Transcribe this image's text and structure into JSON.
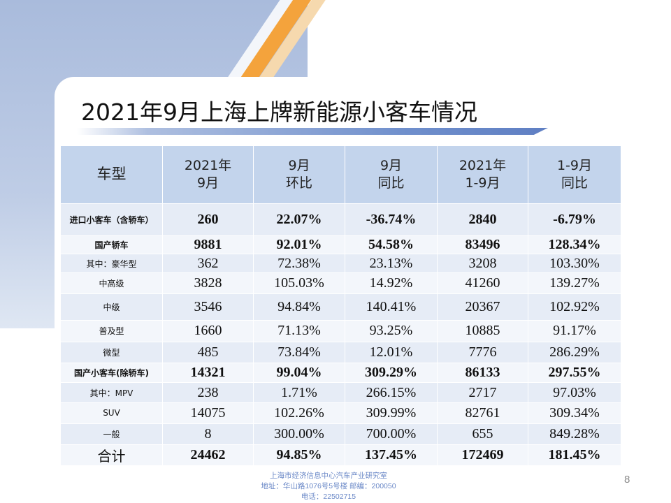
{
  "slide": {
    "title": "2021年9月上海上牌新能源小客车情况",
    "page_number": "8"
  },
  "table": {
    "headers": [
      {
        "line1": "车型",
        "line2": ""
      },
      {
        "line1": "2021年",
        "line2": "9月"
      },
      {
        "line1": "9月",
        "line2": "环比"
      },
      {
        "line1": "9月",
        "line2": "同比"
      },
      {
        "line1": "2021年",
        "line2": "1-9月"
      },
      {
        "line1": "1-9月",
        "line2": "同比"
      }
    ],
    "rows": [
      [
        "进口小客车（含轿车）",
        "260",
        "22.07%",
        "-36.74%",
        "2840",
        "-6.79%"
      ],
      [
        "国产轿车",
        "9881",
        "92.01%",
        "54.58%",
        "83496",
        "128.34%"
      ],
      [
        "其中：豪华型",
        "362",
        "72.38%",
        "23.13%",
        "3208",
        "103.30%"
      ],
      [
        "中高级",
        "3828",
        "105.03%",
        "14.92%",
        "41260",
        "139.27%"
      ],
      [
        "中级",
        "3546",
        "94.84%",
        "140.41%",
        "20367",
        "102.92%"
      ],
      [
        "普及型",
        "1660",
        "71.13%",
        "93.25%",
        "10885",
        "91.17%"
      ],
      [
        "微型",
        "485",
        "73.84%",
        "12.01%",
        "7776",
        "286.29%"
      ],
      [
        "国产小客车(除轿车)",
        "14321",
        "99.04%",
        "309.29%",
        "86133",
        "297.55%"
      ],
      [
        "其中：MPV",
        "238",
        "1.71%",
        "266.15%",
        "2717",
        "97.03%"
      ],
      [
        "SUV",
        "14075",
        "102.26%",
        "309.99%",
        "82761",
        "309.34%"
      ],
      [
        "一般",
        "8",
        "300.00%",
        "700.00%",
        "655",
        "849.28%"
      ],
      [
        "合计",
        "24462",
        "94.85%",
        "137.45%",
        "172469",
        "181.45%"
      ]
    ]
  },
  "footer": {
    "line1": "上海市经济信息中心汽车产业研究室",
    "line2": "地址：华山路1076号5号楼    邮编：200050",
    "line3": "电话：22502715"
  },
  "colors": {
    "header_bg": "#c3d4ec",
    "row_bg": "#e6ecf6",
    "row_alt_bg": "#f3f6fb",
    "accent_orange": "#f4a33c",
    "accent_blue": "#6f8fcc",
    "footer_text": "#6a88c7"
  }
}
